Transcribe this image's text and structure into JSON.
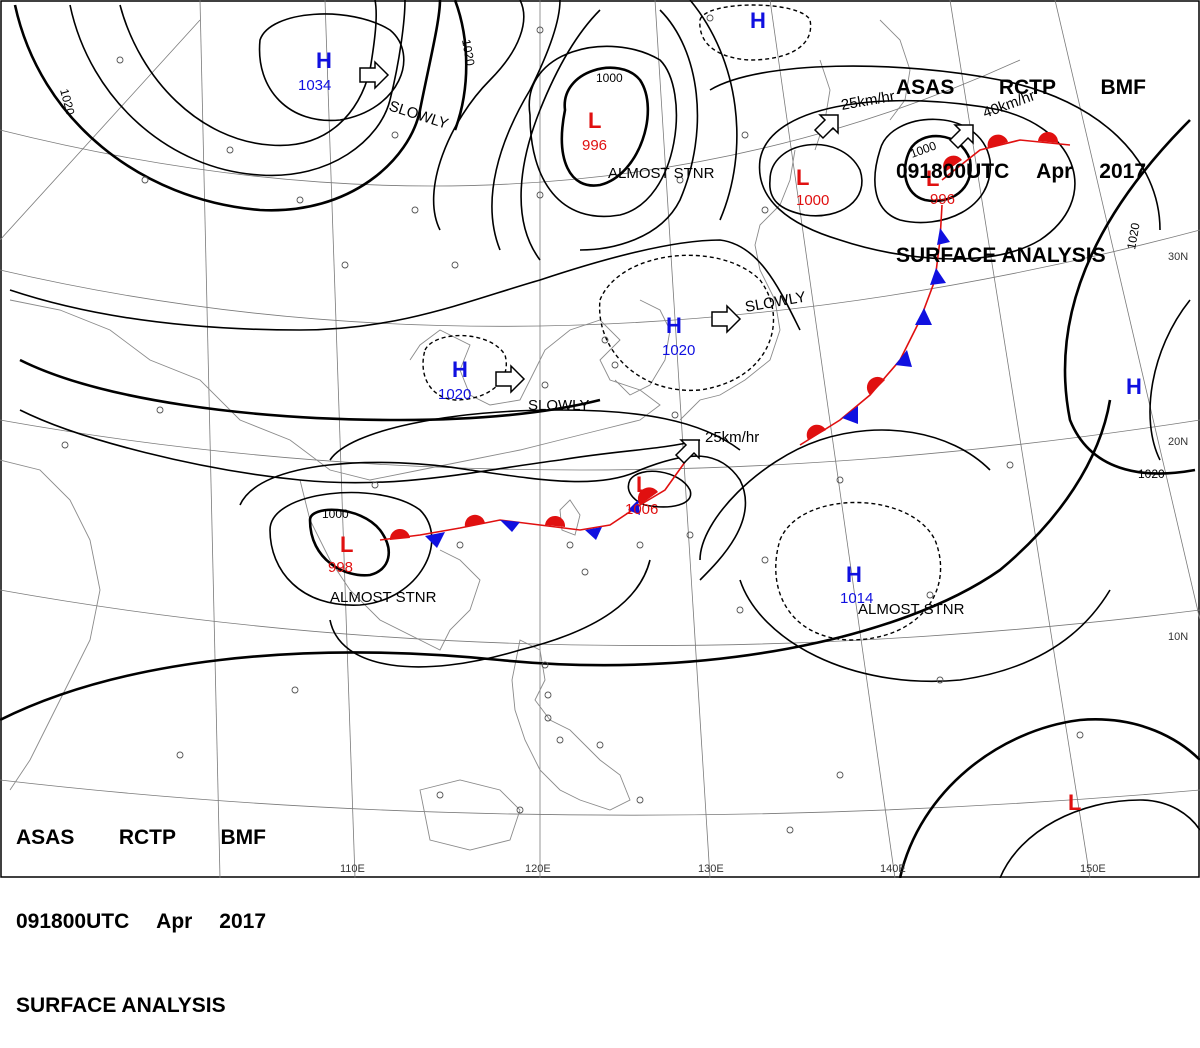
{
  "header": {
    "agency": "ASAS",
    "station": "RCTP",
    "unit": "BMF",
    "time": "091800UTC",
    "month": "Apr",
    "year": "2017",
    "title": "SURFACE ANALYSIS"
  },
  "lat_labels": [
    "30N",
    "20N",
    "10N"
  ],
  "lon_labels": [
    "110E",
    "120E",
    "130E",
    "140E",
    "150E"
  ],
  "isobar_labels": [
    "1020",
    "1020",
    "1000",
    "1000",
    "1000",
    "1020",
    "1020"
  ],
  "pressure_centers": [
    {
      "type": "H",
      "value": "1034",
      "motion": "SLOWLY"
    },
    {
      "type": "L",
      "value": "996",
      "motion": "ALMOST STNR"
    },
    {
      "type": "H",
      "value": "",
      "motion": ""
    },
    {
      "type": "L",
      "value": "1000",
      "motion": "25km/hr"
    },
    {
      "type": "L",
      "value": "996",
      "motion": "40km/hr"
    },
    {
      "type": "H",
      "value": "1020",
      "motion": "SLOWLY"
    },
    {
      "type": "H",
      "value": "1020",
      "motion": "SLOWLY"
    },
    {
      "type": "H",
      "value": "",
      "motion": ""
    },
    {
      "type": "L",
      "value": "998",
      "motion": "ALMOST STNR"
    },
    {
      "type": "L",
      "value": "1006",
      "motion": "25km/hr"
    },
    {
      "type": "H",
      "value": "1014",
      "motion": "ALMOST STNR"
    },
    {
      "type": "L",
      "value": "",
      "motion": ""
    }
  ],
  "colors": {
    "high": "#1010e0",
    "low": "#e01010",
    "cold_front": "#1010e0",
    "warm_front": "#e01010",
    "isobar": "#000000",
    "grid": "#7a7a7a",
    "coast": "#8a8a8a"
  }
}
